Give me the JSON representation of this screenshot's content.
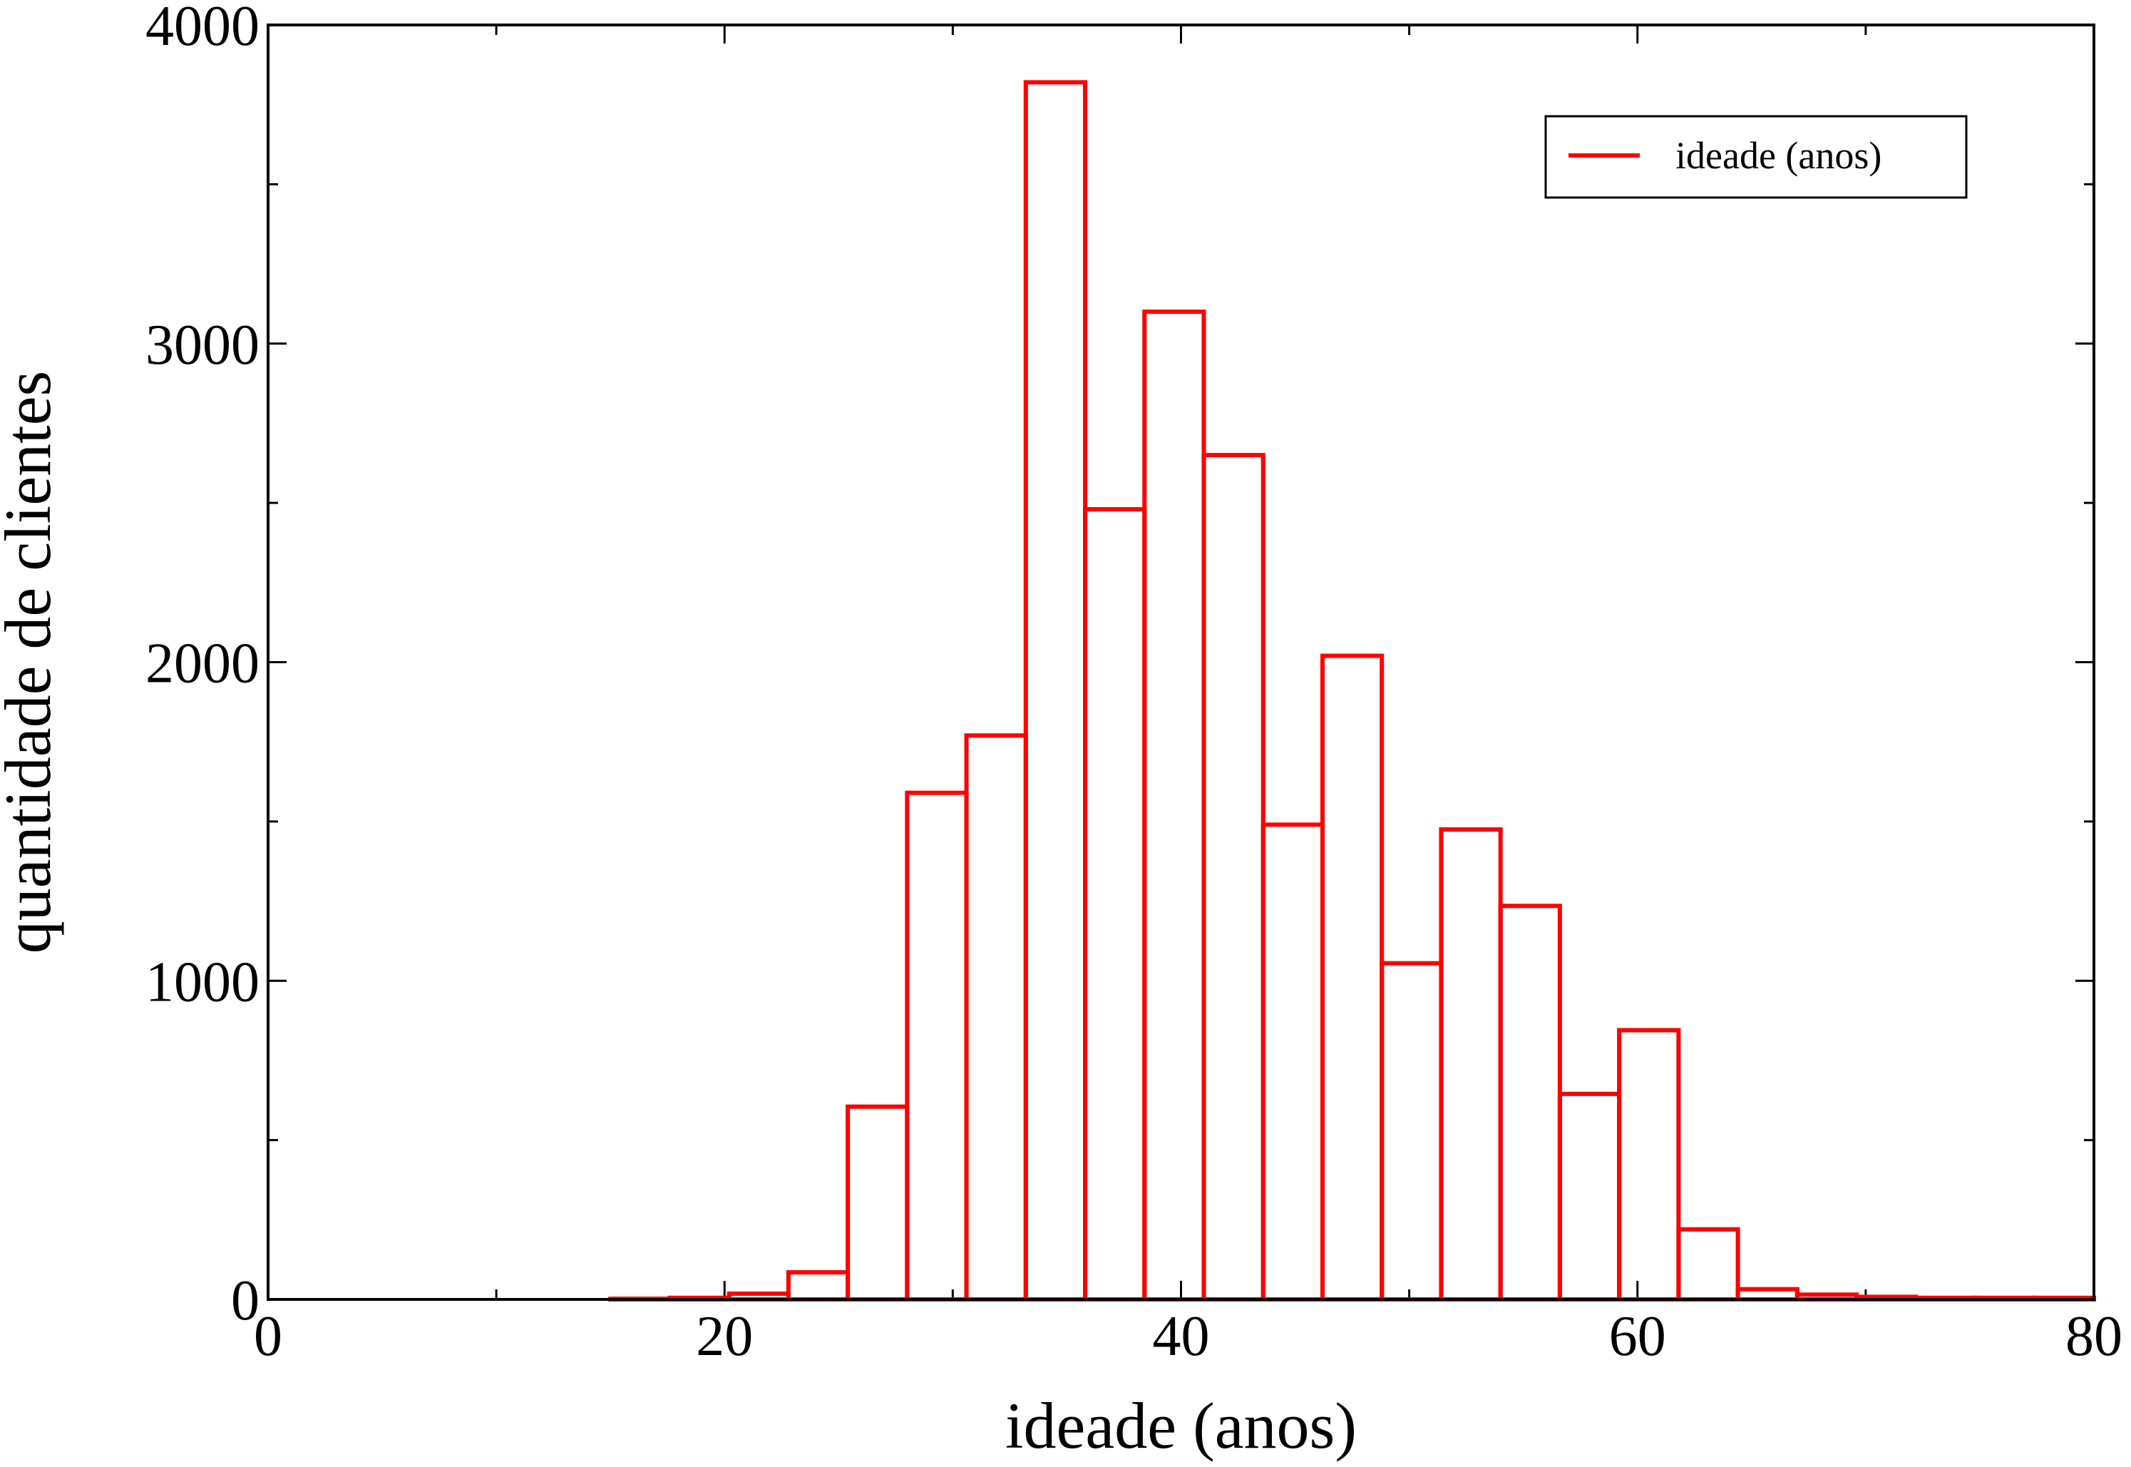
{
  "chart_data": {
    "type": "bar",
    "title": "",
    "xlabel": "ideade (anos)",
    "ylabel": "quantidade de clientes",
    "xlim": [
      0,
      80
    ],
    "ylim": [
      0,
      4000
    ],
    "x_ticks": [
      0,
      20,
      40,
      60,
      80
    ],
    "y_ticks": [
      0,
      1000,
      2000,
      3000,
      4000
    ],
    "x_minor_step": 10,
    "y_minor_step": 500,
    "grid": false,
    "legend_position": "top-right",
    "series": [
      {
        "name": "ideade (anos)",
        "color": "#ff0000",
        "style": "step-outline",
        "bin_width": 2.6,
        "bin_starts": [
          15.0,
          17.6,
          20.2,
          22.8,
          25.4,
          28.0,
          30.6,
          33.2,
          35.8,
          38.4,
          41.0,
          43.6,
          46.2,
          48.8,
          51.4,
          54.0,
          56.6,
          59.2,
          61.8,
          64.4,
          67.0,
          69.6,
          72.2,
          74.8,
          77.4
        ],
        "values": [
          2,
          5,
          18,
          85,
          605,
          1590,
          1770,
          3820,
          2480,
          3100,
          2650,
          1490,
          2020,
          1055,
          1475,
          1235,
          645,
          845,
          220,
          32,
          15,
          8,
          5,
          5,
          5
        ]
      }
    ]
  }
}
